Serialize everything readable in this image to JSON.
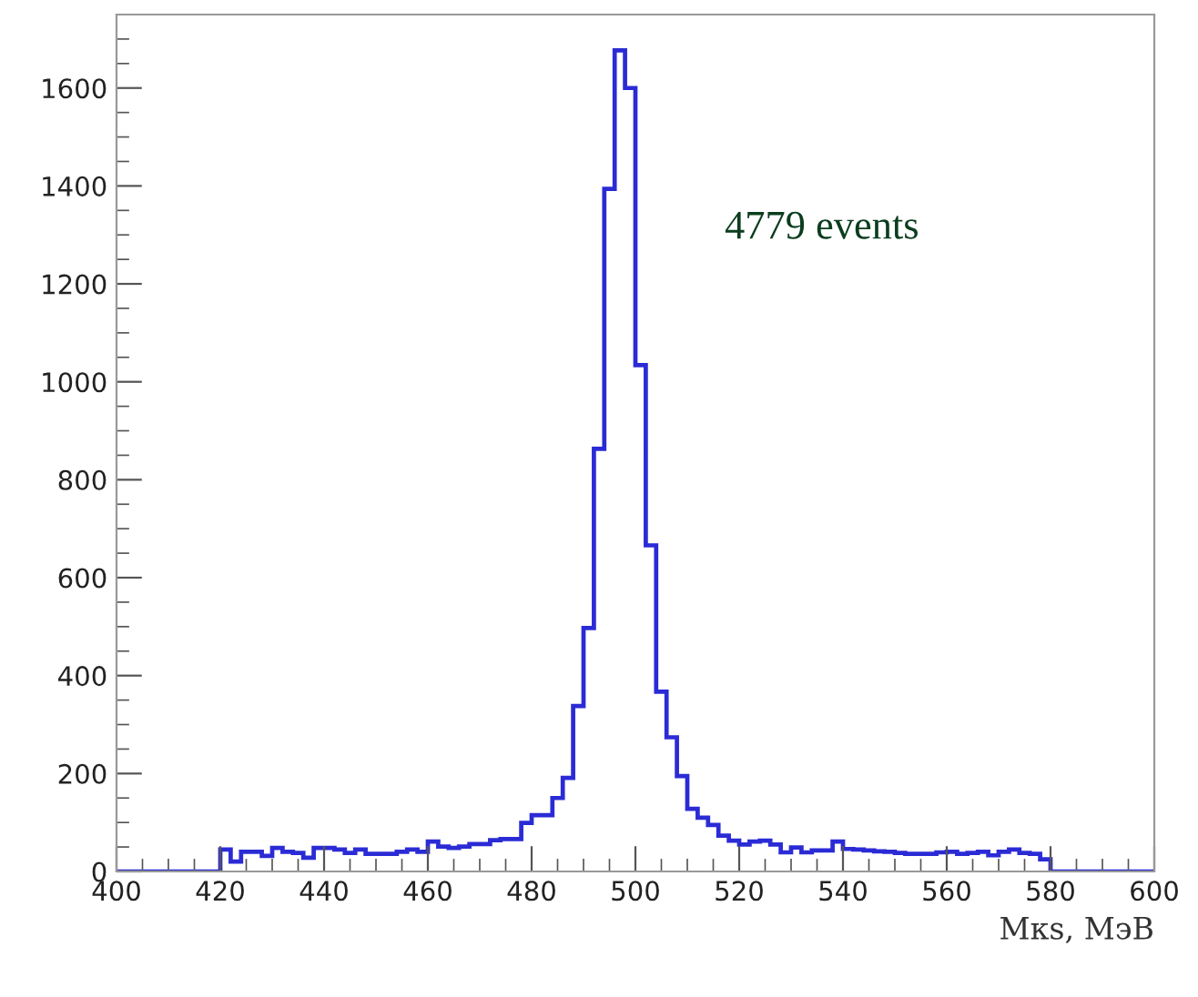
{
  "chart_data": {
    "type": "histogram",
    "xlabel": "Mкs, MэВ",
    "bins": [
      400,
      402,
      404,
      406,
      408,
      410,
      412,
      414,
      416,
      418,
      420,
      422,
      424,
      426,
      428,
      430,
      432,
      434,
      436,
      438,
      440,
      442,
      444,
      446,
      448,
      450,
      452,
      454,
      456,
      458,
      460,
      462,
      464,
      466,
      468,
      470,
      472,
      474,
      476,
      478,
      480,
      482,
      484,
      486,
      488,
      490,
      492,
      494,
      496,
      498,
      500,
      502,
      504,
      506,
      508,
      510,
      512,
      514,
      516,
      518,
      520,
      522,
      524,
      526,
      528,
      530,
      532,
      534,
      536,
      538,
      540,
      542,
      544,
      546,
      548,
      550,
      552,
      554,
      556,
      558,
      560,
      562,
      564,
      566,
      568,
      570,
      572,
      574,
      576,
      578,
      580,
      582,
      584,
      586,
      588,
      590,
      592,
      594,
      596,
      598,
      600
    ],
    "values": [
      0,
      0,
      0,
      0,
      0,
      0,
      0,
      0,
      0,
      0,
      45,
      20,
      40,
      40,
      32,
      48,
      40,
      38,
      28,
      48,
      48,
      45,
      38,
      45,
      36,
      36,
      36,
      40,
      45,
      40,
      61,
      51,
      48,
      51,
      56,
      56,
      64,
      66,
      66,
      99,
      115,
      115,
      150,
      191,
      338,
      497,
      863,
      1394,
      1677,
      1600,
      1034,
      666,
      367,
      274,
      195,
      128,
      110,
      95,
      73,
      63,
      55,
      61,
      63,
      55,
      39,
      49,
      39,
      43,
      43,
      61,
      46,
      45,
      43,
      41,
      40,
      38,
      36,
      36,
      36,
      39,
      40,
      36,
      38,
      40,
      33,
      40,
      45,
      38,
      36,
      25,
      0,
      0,
      0,
      0,
      0,
      0,
      0,
      0,
      0,
      0
    ],
    "color": "#2b2bd6",
    "xlim": [
      400,
      600
    ],
    "ylim": [
      0,
      1750
    ],
    "xticks": [
      400,
      420,
      440,
      460,
      480,
      500,
      520,
      540,
      560,
      580,
      600
    ],
    "yticks": [
      0,
      200,
      400,
      600,
      800,
      1000,
      1200,
      1400,
      1600
    ],
    "grid": false,
    "annotations": [
      "4779 events"
    ]
  }
}
